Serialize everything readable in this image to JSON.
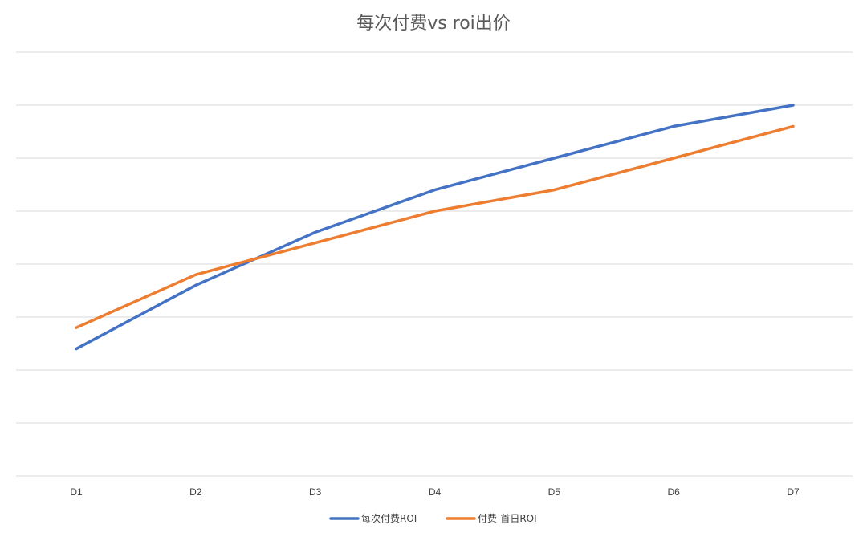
{
  "chart_data": {
    "type": "line",
    "title": "每次付费vs roi出价",
    "xlabel": "",
    "ylabel": "",
    "categories": [
      "D1",
      "D2",
      "D3",
      "D4",
      "D5",
      "D6",
      "D7"
    ],
    "ylim": [
      0,
      8
    ],
    "grid": true,
    "y_tick_labels_visible": false,
    "legend_position": "bottom",
    "series": [
      {
        "name": "每次付费ROI",
        "color": "#4472C4",
        "values": [
          2.4,
          3.6,
          4.6,
          5.4,
          6.0,
          6.6,
          7.0
        ]
      },
      {
        "name": "付费-首日ROI",
        "color": "#ED7D31",
        "values": [
          2.8,
          3.8,
          4.4,
          5.0,
          5.4,
          6.0,
          6.6
        ]
      }
    ]
  }
}
